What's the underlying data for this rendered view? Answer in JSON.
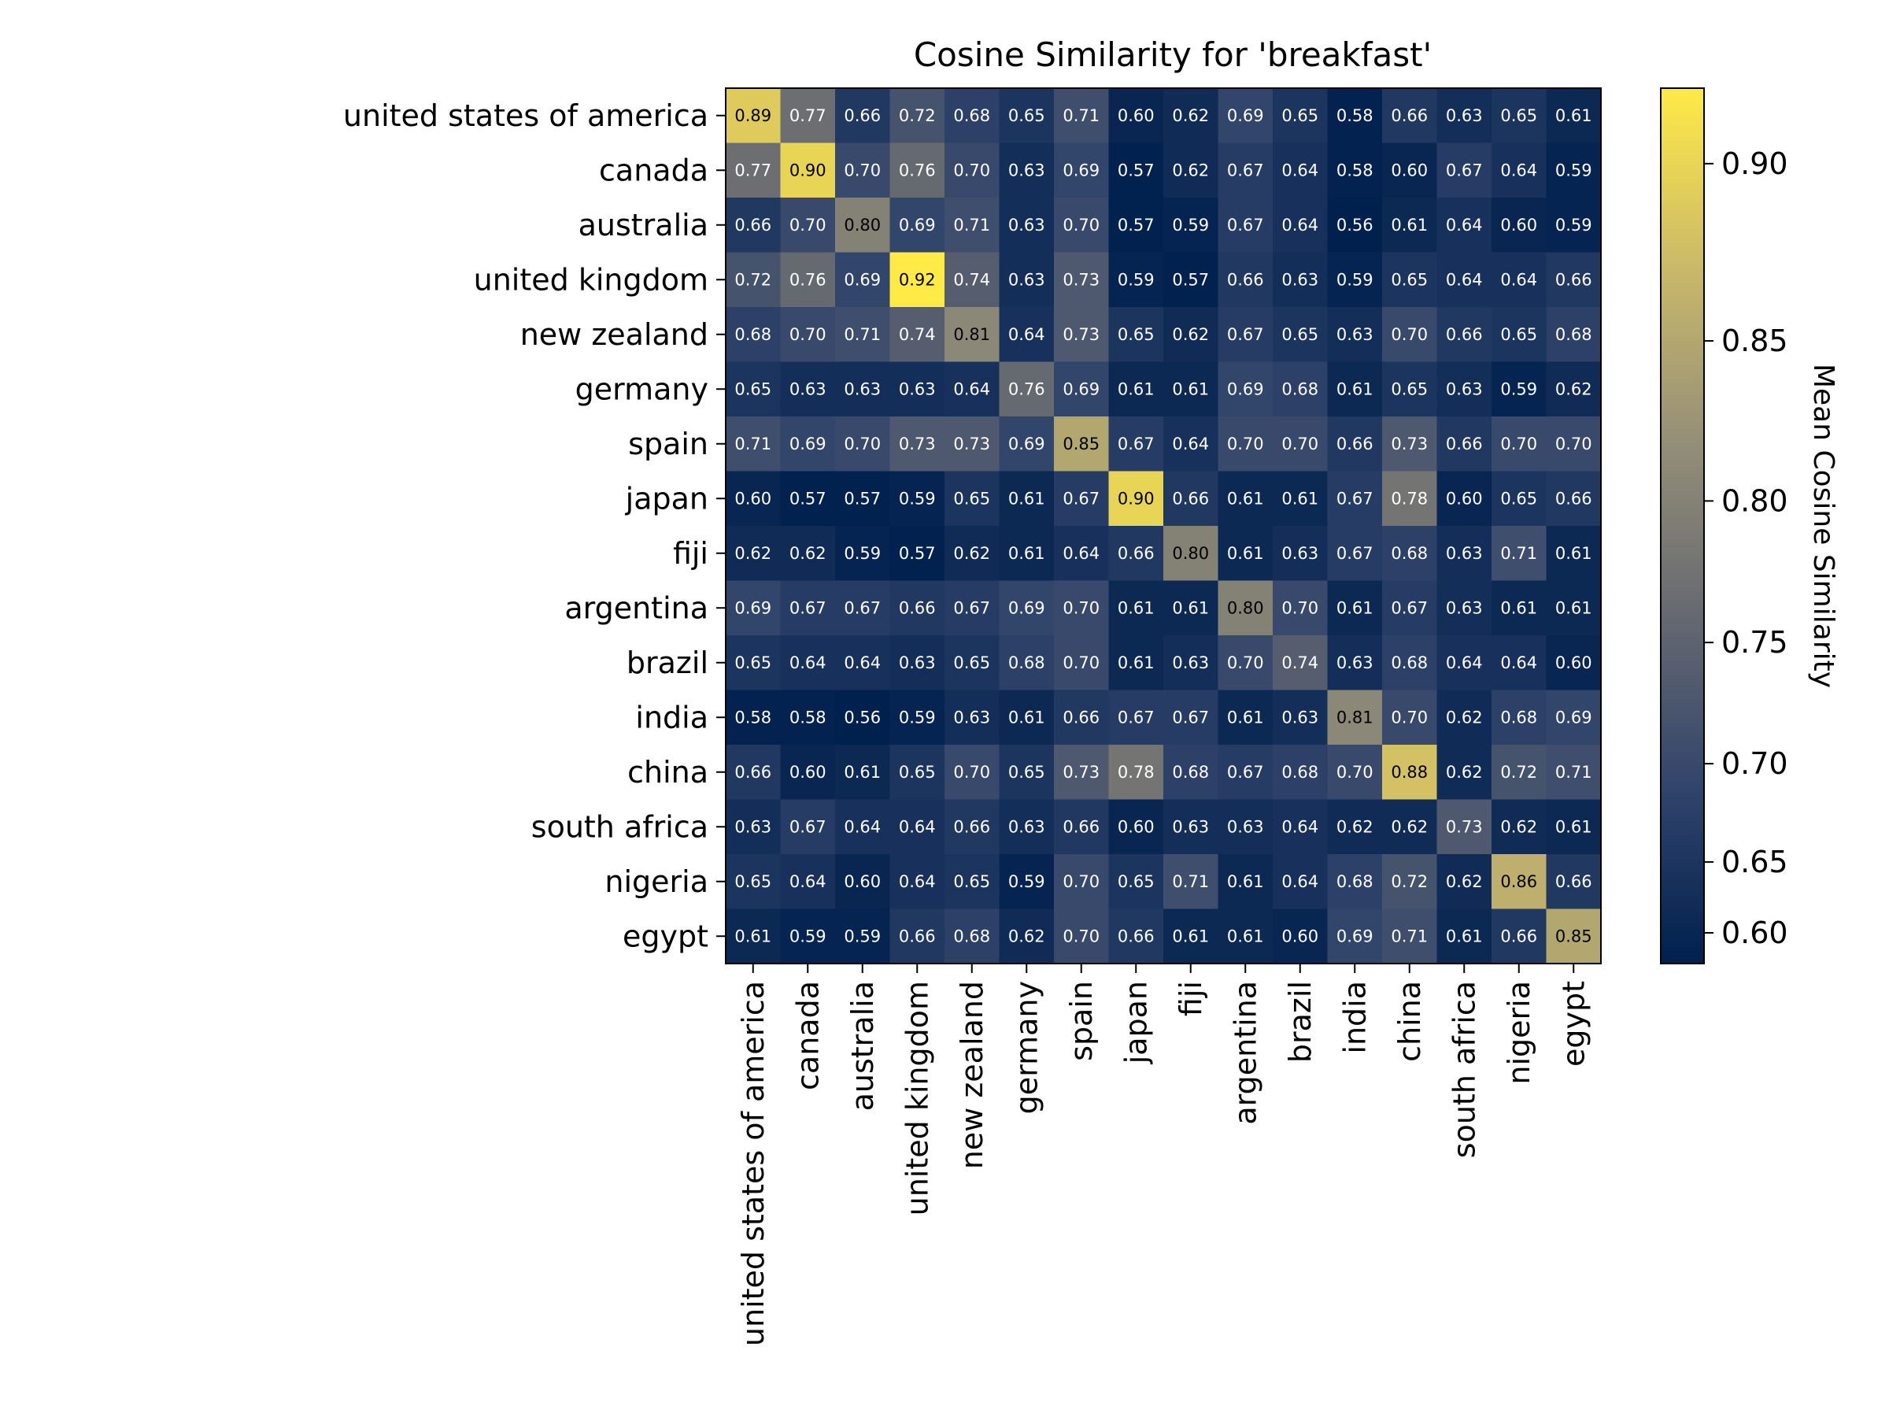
{
  "chart_data": {
    "type": "heatmap",
    "title": "Cosine Similarity for 'breakfast'",
    "rows": [
      "united states of america",
      "canada",
      "australia",
      "united kingdom",
      "new zealand",
      "germany",
      "spain",
      "japan",
      "fiji",
      "argentina",
      "brazil",
      "india",
      "china",
      "south africa",
      "nigeria",
      "egypt"
    ],
    "columns": [
      "united states of america",
      "canada",
      "australia",
      "united kingdom",
      "new zealand",
      "germany",
      "spain",
      "japan",
      "fiji",
      "argentina",
      "brazil",
      "india",
      "china",
      "south africa",
      "nigeria",
      "egypt"
    ],
    "values": [
      [
        0.89,
        0.77,
        0.66,
        0.72,
        0.68,
        0.65,
        0.71,
        0.6,
        0.62,
        0.69,
        0.65,
        0.58,
        0.66,
        0.63,
        0.65,
        0.61
      ],
      [
        0.77,
        0.9,
        0.7,
        0.76,
        0.7,
        0.63,
        0.69,
        0.57,
        0.62,
        0.67,
        0.64,
        0.58,
        0.6,
        0.67,
        0.64,
        0.59
      ],
      [
        0.66,
        0.7,
        0.8,
        0.69,
        0.71,
        0.63,
        0.7,
        0.57,
        0.59,
        0.67,
        0.64,
        0.56,
        0.61,
        0.64,
        0.6,
        0.59
      ],
      [
        0.72,
        0.76,
        0.69,
        0.92,
        0.74,
        0.63,
        0.73,
        0.59,
        0.57,
        0.66,
        0.63,
        0.59,
        0.65,
        0.64,
        0.64,
        0.66
      ],
      [
        0.68,
        0.7,
        0.71,
        0.74,
        0.81,
        0.64,
        0.73,
        0.65,
        0.62,
        0.67,
        0.65,
        0.63,
        0.7,
        0.66,
        0.65,
        0.68
      ],
      [
        0.65,
        0.63,
        0.63,
        0.63,
        0.64,
        0.76,
        0.69,
        0.61,
        0.61,
        0.69,
        0.68,
        0.61,
        0.65,
        0.63,
        0.59,
        0.62
      ],
      [
        0.71,
        0.69,
        0.7,
        0.73,
        0.73,
        0.69,
        0.85,
        0.67,
        0.64,
        0.7,
        0.7,
        0.66,
        0.73,
        0.66,
        0.7,
        0.7
      ],
      [
        0.6,
        0.57,
        0.57,
        0.59,
        0.65,
        0.61,
        0.67,
        0.9,
        0.66,
        0.61,
        0.61,
        0.67,
        0.78,
        0.6,
        0.65,
        0.66
      ],
      [
        0.62,
        0.62,
        0.59,
        0.57,
        0.62,
        0.61,
        0.64,
        0.66,
        0.8,
        0.61,
        0.63,
        0.67,
        0.68,
        0.63,
        0.71,
        0.61
      ],
      [
        0.69,
        0.67,
        0.67,
        0.66,
        0.67,
        0.69,
        0.7,
        0.61,
        0.61,
        0.8,
        0.7,
        0.61,
        0.67,
        0.63,
        0.61,
        0.61
      ],
      [
        0.65,
        0.64,
        0.64,
        0.63,
        0.65,
        0.68,
        0.7,
        0.61,
        0.63,
        0.7,
        0.74,
        0.63,
        0.68,
        0.64,
        0.64,
        0.6
      ],
      [
        0.58,
        0.58,
        0.56,
        0.59,
        0.63,
        0.61,
        0.66,
        0.67,
        0.67,
        0.61,
        0.63,
        0.81,
        0.7,
        0.62,
        0.68,
        0.69
      ],
      [
        0.66,
        0.6,
        0.61,
        0.65,
        0.7,
        0.65,
        0.73,
        0.78,
        0.68,
        0.67,
        0.68,
        0.7,
        0.88,
        0.62,
        0.72,
        0.71
      ],
      [
        0.63,
        0.67,
        0.64,
        0.64,
        0.66,
        0.63,
        0.66,
        0.6,
        0.63,
        0.63,
        0.64,
        0.62,
        0.62,
        0.73,
        0.62,
        0.61
      ],
      [
        0.65,
        0.64,
        0.6,
        0.64,
        0.65,
        0.59,
        0.7,
        0.65,
        0.71,
        0.61,
        0.64,
        0.68,
        0.72,
        0.62,
        0.86,
        0.66
      ],
      [
        0.61,
        0.59,
        0.59,
        0.66,
        0.68,
        0.62,
        0.7,
        0.66,
        0.61,
        0.61,
        0.6,
        0.69,
        0.71,
        0.61,
        0.66,
        0.85
      ]
    ],
    "colormap": "cividis",
    "colormap_stops": [
      "#00204d",
      "#31446b",
      "#666970",
      "#958f78",
      "#cbba69",
      "#ffea46"
    ],
    "color_range": [
      0.555,
      0.92
    ],
    "colorbar": {
      "label": "Mean Cosine Similarity",
      "ticks": [
        0.6,
        0.65,
        0.7,
        0.75,
        0.8,
        0.85,
        0.9
      ],
      "tick_labels": [
        "0.60",
        "0.65",
        "0.70",
        "0.75",
        "0.80",
        "0.85",
        "0.90"
      ],
      "scale": "nonlinear (compressed toward low end)"
    },
    "grid": false
  }
}
